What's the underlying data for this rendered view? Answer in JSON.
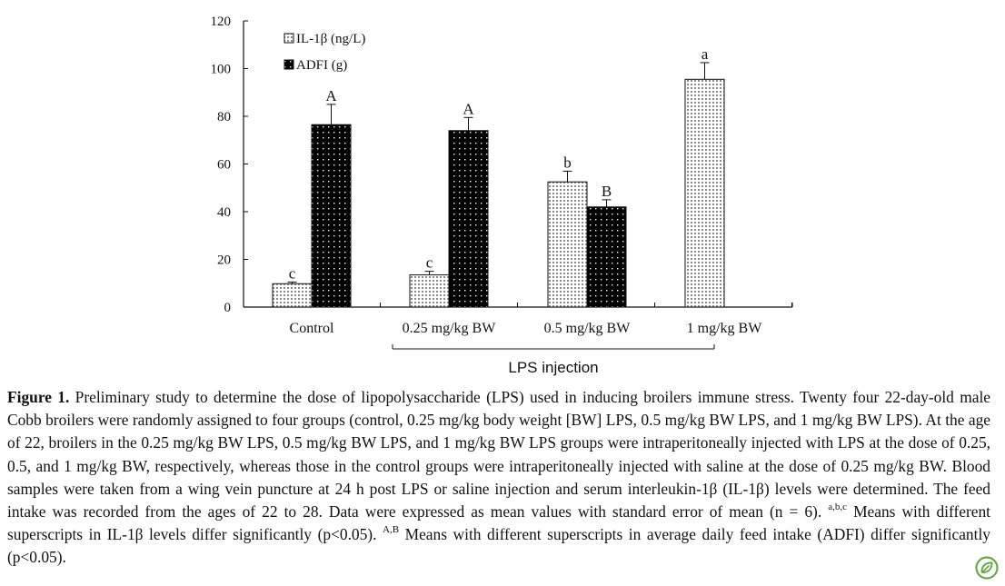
{
  "chart_data": {
    "type": "bar",
    "categories": [
      "Control",
      "0.25 mg/kg BW",
      "0.5 mg/kg BW",
      "1 mg/kg BW"
    ],
    "group_label": "LPS injection",
    "ylim": [
      0,
      120
    ],
    "yticks": [
      "0",
      "20",
      "40",
      "60",
      "80",
      "100",
      "120"
    ],
    "legend_position": "top-left",
    "series": [
      {
        "name": "IL-1β (ng/L)",
        "pattern": "light-dotted",
        "values": [
          9.8,
          13.5,
          52.5,
          95.5
        ],
        "errors": [
          0.7,
          1.5,
          4.5,
          7.0
        ],
        "labels": [
          "c",
          "c",
          "b",
          "a"
        ]
      },
      {
        "name": "ADFI (g)",
        "pattern": "dark-dotted",
        "values": [
          76.5,
          74.0,
          42.0,
          null
        ],
        "errors": [
          8.5,
          5.5,
          3.0,
          null
        ],
        "labels": [
          "A",
          "A",
          "B",
          ""
        ]
      }
    ]
  },
  "caption": {
    "lead": "Figure 1.",
    "part1": " Preliminary study to determine the dose of lipopolysaccharide (LPS) used in inducing broilers immune stress. Twenty four 22-day-old male Cobb broilers were randomly assigned to four groups (control, 0.25 mg/kg body weight [BW] LPS, 0.5 mg/kg BW LPS, and 1 mg/kg BW LPS). At the age of 22, broilers in the 0.25 mg/kg BW LPS, 0.5 mg/kg BW LPS, and 1 mg/kg BW LPS groups were intraperitoneally injected with LPS at the dose of 0.25, 0.5, and 1 mg/kg BW, respectively, whereas those in the control groups were intraperitoneally injected with saline at the dose of 0.25 mg/kg BW. Blood samples were taken from a wing vein puncture at 24 h post LPS or saline injection and serum interleukin-1β (IL-1β) levels were determined. The feed intake was recorded from the ages of 22 to 28. Data were expressed as mean values with standard error of mean (n = 6). ",
    "sup1": "a,b,c",
    "part2": " Means with different superscripts in IL-1β levels differ significantly (p<0.05). ",
    "sup2": "A,B",
    "part3": " Means with different superscripts in average daily feed intake (ADFI) differ significantly (p<0.05)."
  },
  "logo": {
    "icon": "leaf-badge-icon",
    "color": "#6aa84f"
  }
}
